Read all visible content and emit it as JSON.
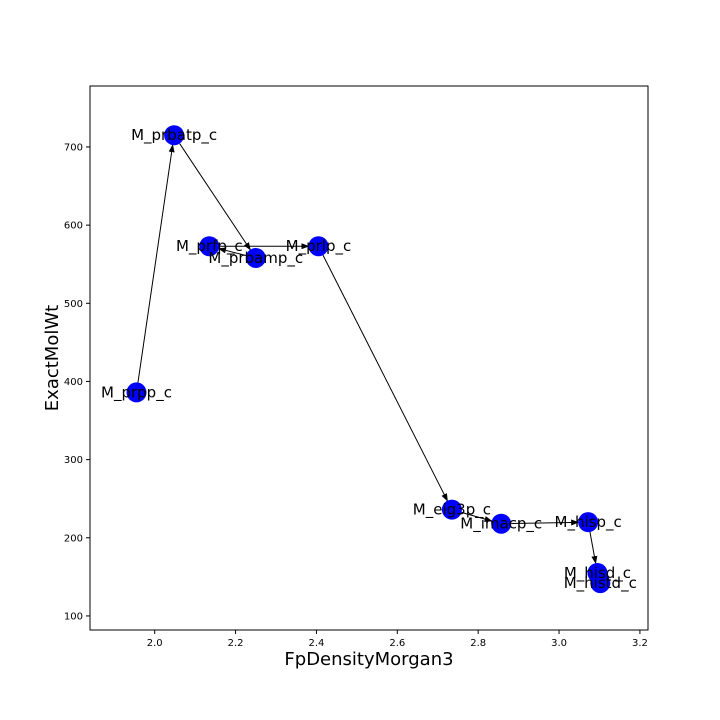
{
  "chart_data": {
    "type": "scatter",
    "title": "",
    "xlabel": "FpDensityMorgan3",
    "ylabel": "ExactMolWt",
    "xlim": [
      1.84,
      3.22
    ],
    "ylim": [
      82,
      778
    ],
    "xticks": [
      "2.0",
      "2.2",
      "2.4",
      "2.6",
      "2.8",
      "3.0",
      "3.2"
    ],
    "xtick_values": [
      2.0,
      2.2,
      2.4,
      2.6,
      2.8,
      3.0,
      3.2
    ],
    "yticks": [
      "100",
      "200",
      "300",
      "400",
      "500",
      "600",
      "700"
    ],
    "ytick_values": [
      100,
      200,
      300,
      400,
      500,
      600,
      700
    ],
    "grid": false,
    "marker_color": "#0000ff",
    "edge_color": "#000000",
    "nodes": [
      {
        "id": "M_prpp_c",
        "x": 1.955,
        "y": 386
      },
      {
        "id": "M_prbatp_c",
        "x": 2.048,
        "y": 715
      },
      {
        "id": "M_prbamp_c",
        "x": 2.25,
        "y": 558
      },
      {
        "id": "M_prfp_c",
        "x": 2.135,
        "y": 573
      },
      {
        "id": "M_prlp_c",
        "x": 2.405,
        "y": 573
      },
      {
        "id": "M_eig3p_c",
        "x": 2.735,
        "y": 236
      },
      {
        "id": "M_imacp_c",
        "x": 2.857,
        "y": 218
      },
      {
        "id": "M_hisp_c",
        "x": 3.072,
        "y": 220
      },
      {
        "id": "M_histd_c",
        "x": 3.095,
        "y": 155
      },
      {
        "id": "M_hisd_c",
        "x": 3.102,
        "y": 142
      }
    ],
    "node_labels": [
      "M_prpp_c",
      "M_prbatp_c",
      "M_prbamp_c",
      "M_prfp_c",
      "M_prlp_c",
      "M_eig3p_c",
      "M_imacp_c",
      "M_hisp_c",
      "M_hisd_c",
      "M_histd_c"
    ],
    "edges": [
      {
        "from": "M_prpp_c",
        "to": "M_prbatp_c"
      },
      {
        "from": "M_prbatp_c",
        "to": "M_prbamp_c"
      },
      {
        "from": "M_prbamp_c",
        "to": "M_prfp_c"
      },
      {
        "from": "M_prfp_c",
        "to": "M_prlp_c"
      },
      {
        "from": "M_prlp_c",
        "to": "M_eig3p_c"
      },
      {
        "from": "M_eig3p_c",
        "to": "M_imacp_c"
      },
      {
        "from": "M_imacp_c",
        "to": "M_hisp_c"
      },
      {
        "from": "M_hisp_c",
        "to": "M_histd_c"
      },
      {
        "from": "M_histd_c",
        "to": "M_hisd_c"
      }
    ]
  }
}
